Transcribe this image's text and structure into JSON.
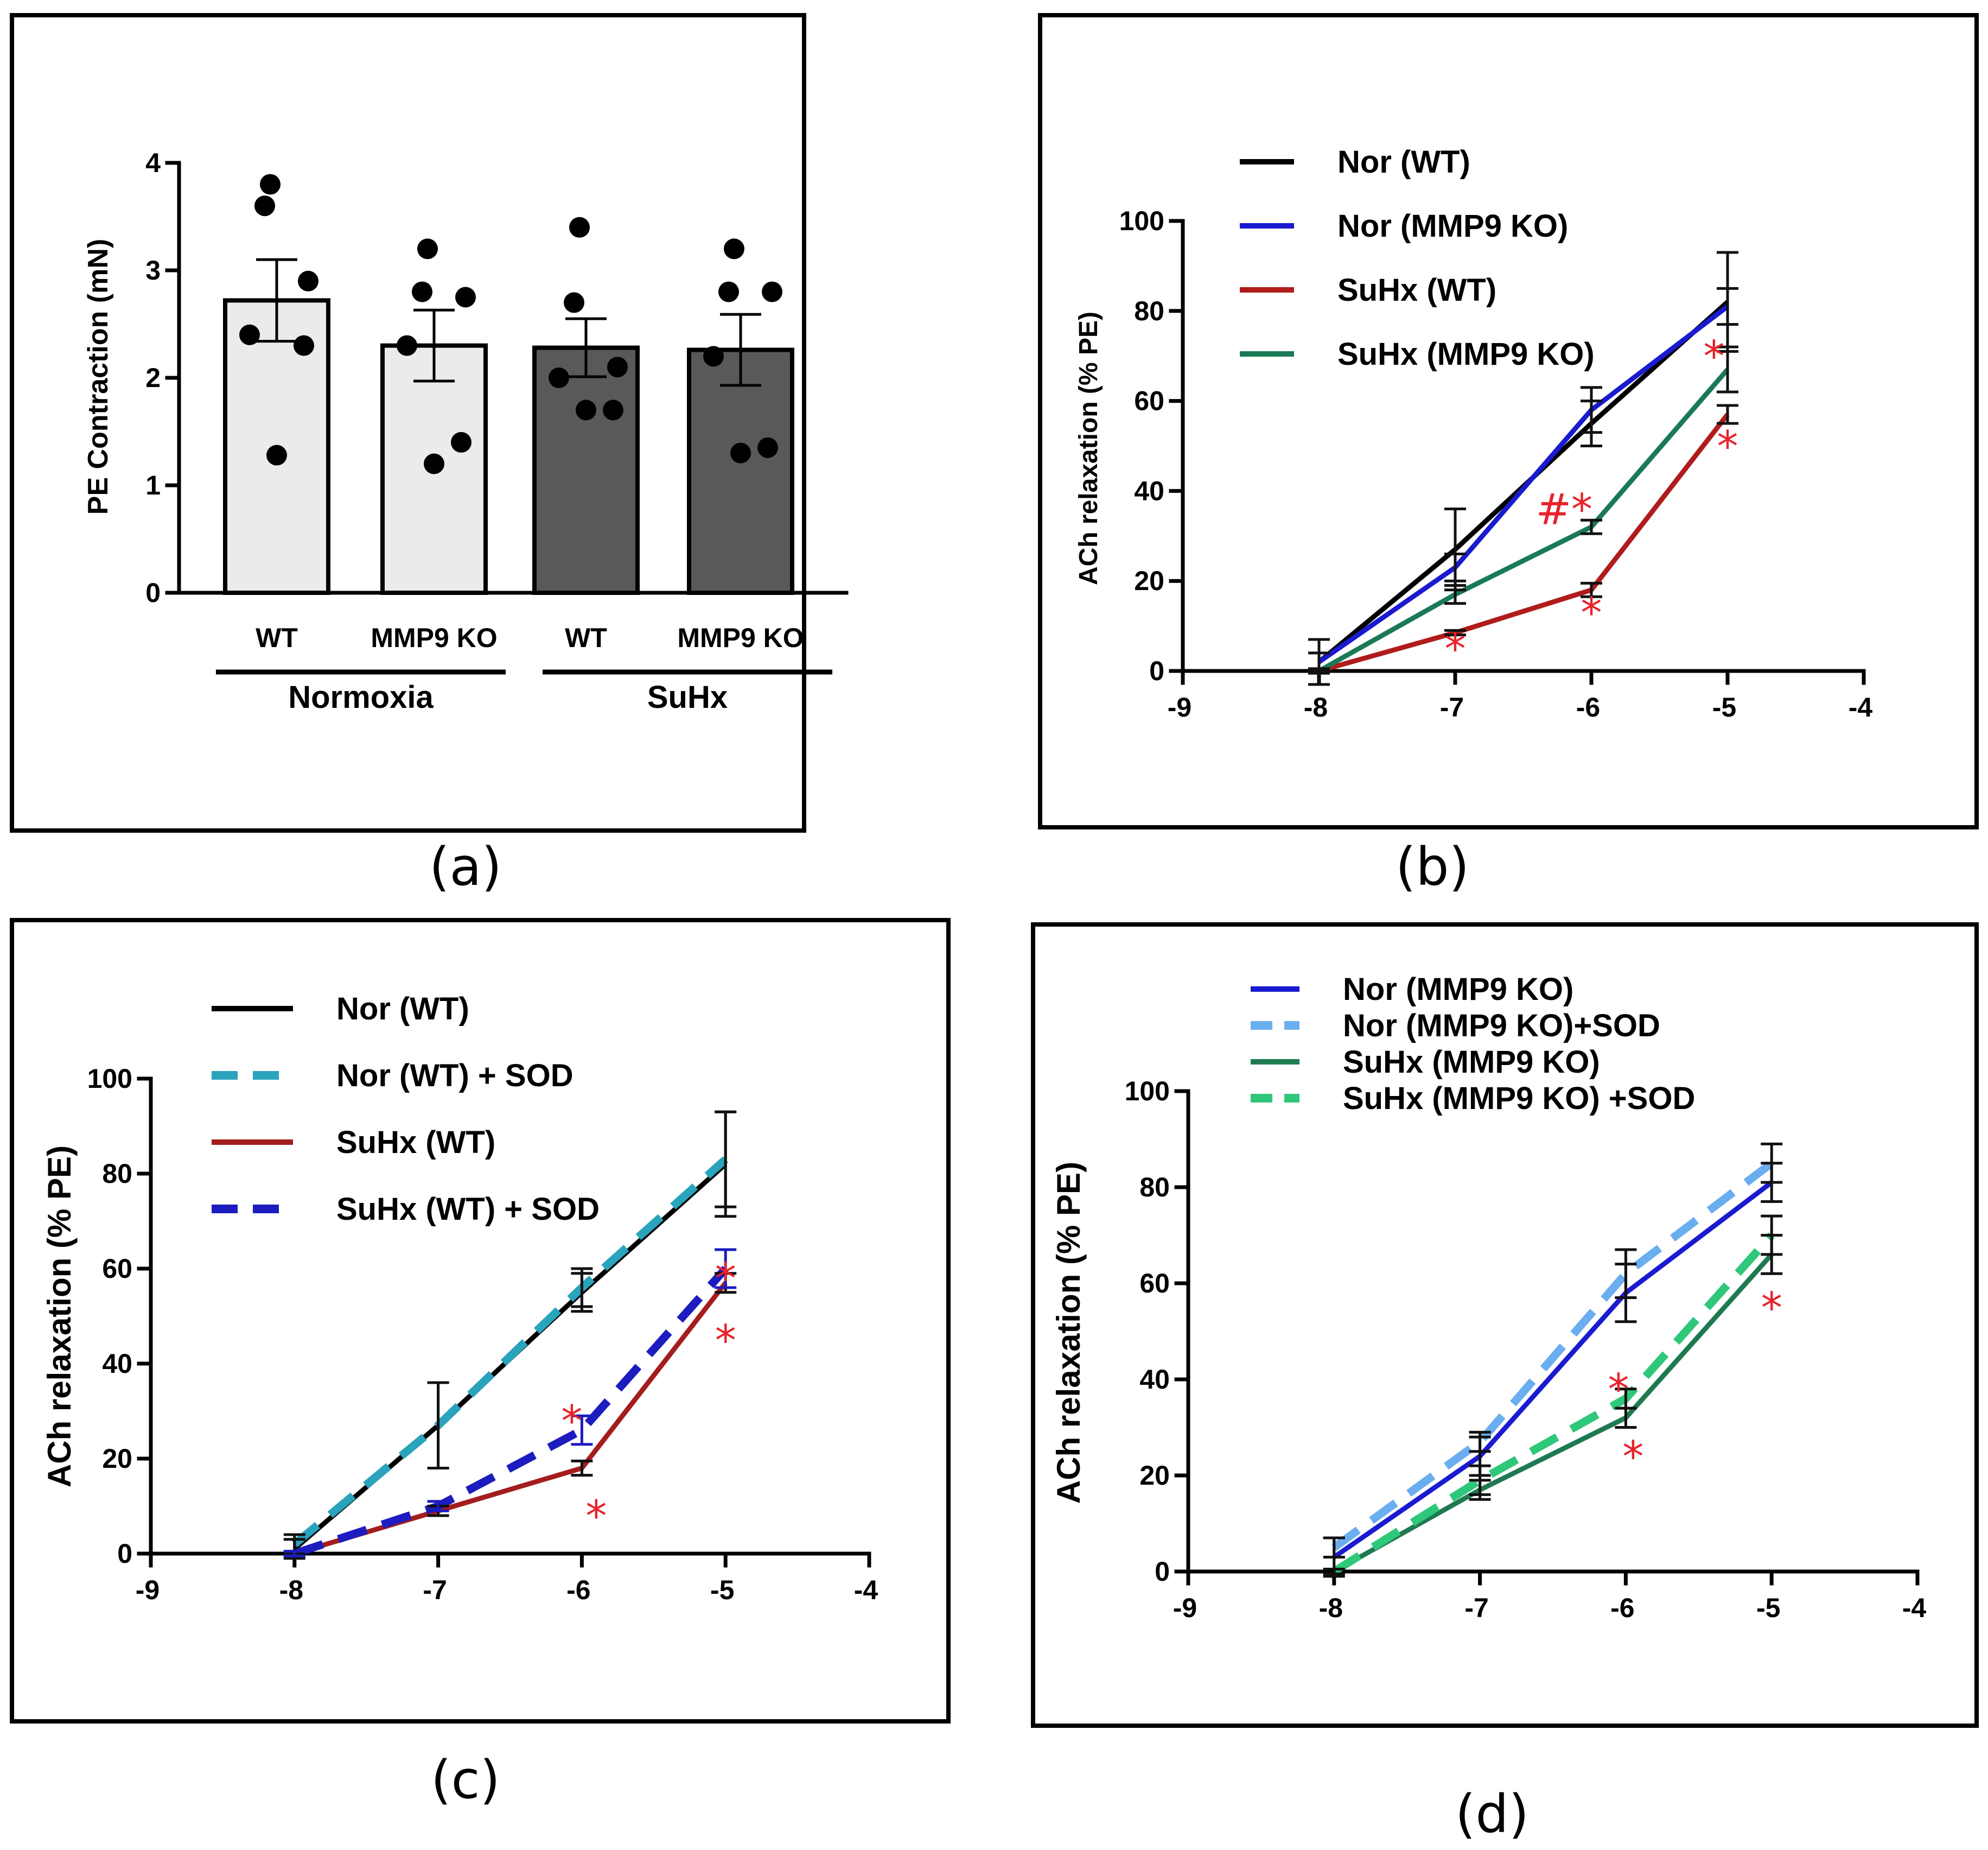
{
  "chart_data": [
    {
      "id": "a",
      "type": "bar",
      "caption": "(a)",
      "ylabel": "PE Contraction (mN)",
      "ylim": [
        0,
        4
      ],
      "yticks": [
        "0",
        "1",
        "2",
        "3",
        "4"
      ],
      "categories": [
        "WT",
        "MMP9 KO",
        "WT",
        "MMP9 KO"
      ],
      "groups": [
        {
          "label": "Normoxia",
          "members": [
            0,
            1
          ]
        },
        {
          "label": "SuHx",
          "members": [
            2,
            3
          ]
        }
      ],
      "values": [
        2.72,
        2.3,
        2.28,
        2.26
      ],
      "errors": [
        0.38,
        0.33,
        0.27,
        0.33
      ],
      "bar_colors": [
        "#ebebeb",
        "#ebebeb",
        "#595959",
        "#595959"
      ],
      "points": [
        [
          3.8,
          3.6,
          2.9,
          2.4,
          2.3,
          1.28
        ],
        [
          3.2,
          2.8,
          2.75,
          2.3,
          1.4,
          1.2
        ],
        [
          3.4,
          2.7,
          2.1,
          2.0,
          1.7,
          1.7
        ],
        [
          3.2,
          2.8,
          2.8,
          2.2,
          1.35,
          1.3
        ]
      ]
    },
    {
      "id": "b",
      "type": "line",
      "caption": "(b)",
      "ylabel": "ACh relaxation (% PE)",
      "xlim": [
        -9,
        -4
      ],
      "ylim": [
        0,
        100
      ],
      "xticks": [
        "-9",
        "-8",
        "-7",
        "-6",
        "-5",
        "-4"
      ],
      "yticks": [
        "0",
        "20",
        "40",
        "60",
        "80",
        "100"
      ],
      "x": [
        -8,
        -7,
        -6,
        -5
      ],
      "series": [
        {
          "name": "Nor (WT)",
          "color": "#000000",
          "dash": false,
          "values": [
            2,
            27,
            55,
            82
          ],
          "errors": [
            5,
            9,
            5,
            11
          ]
        },
        {
          "name": "Nor (MMP9 KO)",
          "color": "#1a1ad0",
          "dash": false,
          "values": [
            2,
            23,
            58,
            81
          ],
          "errors": [
            2,
            3,
            5,
            4
          ]
        },
        {
          "name": "SuHx (WT)",
          "color": "#b01c1c",
          "dash": false,
          "values": [
            0,
            8.5,
            18,
            57
          ],
          "errors": [
            0.5,
            0.5,
            1.5,
            2
          ]
        },
        {
          "name": "SuHx (MMP9 KO)",
          "color": "#1a7a55",
          "dash": false,
          "values": [
            0,
            17,
            32,
            67
          ],
          "errors": [
            0.5,
            2,
            1.5,
            5
          ]
        }
      ],
      "annotations": [
        {
          "text": "*",
          "x": -7,
          "y": 5
        },
        {
          "text": "*",
          "x": -6,
          "y": 13
        },
        {
          "text": "#*",
          "x": -6.2,
          "y": 36
        },
        {
          "text": "*",
          "x": -5.1,
          "y": 70
        },
        {
          "text": "*",
          "x": -5,
          "y": 50
        }
      ]
    },
    {
      "id": "c",
      "type": "line",
      "caption": "(c)",
      "ylabel": "ACh relaxation (% PE)",
      "xlim": [
        -9,
        -4
      ],
      "ylim": [
        0,
        100
      ],
      "xticks": [
        "-9",
        "-8",
        "-7",
        "-6",
        "-5",
        "-4"
      ],
      "yticks": [
        "0",
        "20",
        "40",
        "60",
        "80",
        "100"
      ],
      "x": [
        -8,
        -7,
        -6,
        -5
      ],
      "series": [
        {
          "name": "Nor (WT)",
          "color": "#000000",
          "dash": false,
          "values": [
            1,
            27,
            55,
            82
          ],
          "errors": [
            2,
            9,
            4,
            11
          ]
        },
        {
          "name": "Nor (WT) + SOD",
          "color": "#2aa3bd",
          "dash": true,
          "values": [
            2,
            27,
            56,
            83
          ],
          "errors": [
            2,
            9,
            4,
            10
          ]
        },
        {
          "name": "SuHx (WT)",
          "color": "#a41d1d",
          "dash": false,
          "values": [
            0,
            9,
            18,
            57
          ],
          "errors": [
            0.5,
            1,
            1.5,
            2
          ]
        },
        {
          "name": "SuHx (WT) + SOD",
          "color": "#1c1cbf",
          "dash": true,
          "values": [
            0,
            10,
            26,
            60
          ],
          "errors": [
            0.5,
            1,
            3,
            4
          ]
        }
      ],
      "annotations": [
        {
          "text": "*",
          "x": -6.07,
          "y": 28
        },
        {
          "text": "*",
          "x": -5.9,
          "y": 8
        },
        {
          "text": "*",
          "x": -5,
          "y": 58
        },
        {
          "text": "*",
          "x": -5,
          "y": 45
        }
      ]
    },
    {
      "id": "d",
      "type": "line",
      "caption": "(d)",
      "ylabel": "ACh relaxation (% PE)",
      "xlim": [
        -9,
        -4
      ],
      "ylim": [
        0,
        100
      ],
      "xticks": [
        "-9",
        "-8",
        "-7",
        "-6",
        "-5",
        "-4"
      ],
      "yticks": [
        "0",
        "20",
        "40",
        "60",
        "80",
        "100"
      ],
      "x": [
        -8,
        -7,
        -6,
        -5
      ],
      "series": [
        {
          "name": "Nor (MMP9 KO)",
          "color": "#1a1ad0",
          "dash": false,
          "values": [
            3,
            24,
            58,
            81
          ],
          "errors": [
            4,
            4,
            6,
            4
          ]
        },
        {
          "name": "Nor (MMP9 KO)+SOD",
          "color": "#6aaef0",
          "dash": true,
          "values": [
            5,
            27,
            62,
            85
          ],
          "errors": [
            2,
            2,
            5,
            4
          ]
        },
        {
          "name": "SuHx (MMP9 KO)",
          "color": "#1f7a50",
          "dash": false,
          "values": [
            0,
            17,
            32,
            66
          ],
          "errors": [
            0.5,
            2,
            2,
            4
          ]
        },
        {
          "name": "SuHx (MMP9 KO) +SOD",
          "color": "#2fc77a",
          "dash": true,
          "values": [
            0,
            19,
            36,
            70
          ],
          "errors": [
            0.5,
            3,
            2,
            4
          ]
        }
      ],
      "annotations": [
        {
          "text": "*",
          "x": -6.05,
          "y": 38
        },
        {
          "text": "*",
          "x": -5.95,
          "y": 24
        },
        {
          "text": "*",
          "x": -5,
          "y": 55
        }
      ]
    }
  ]
}
